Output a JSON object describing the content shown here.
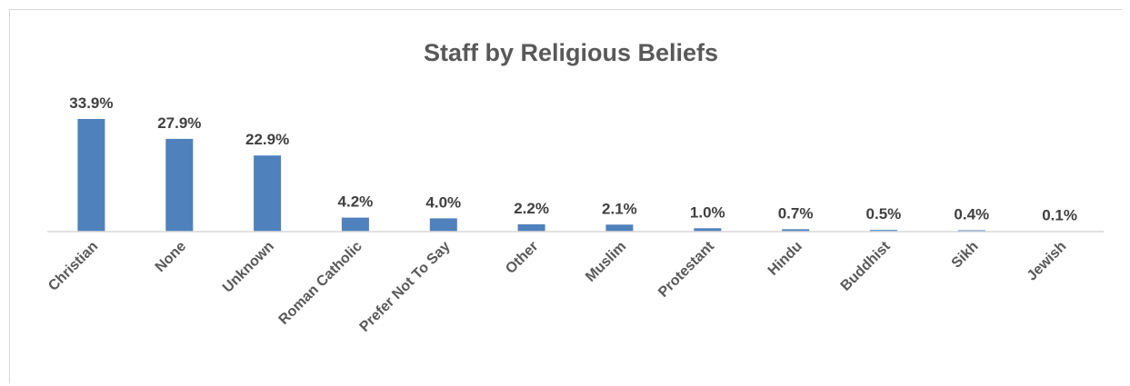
{
  "chart_data": {
    "type": "bar",
    "title": "Staff by Religious Beliefs",
    "xlabel": "",
    "ylabel": "",
    "categories": [
      "Christian",
      "None",
      "Unknown",
      "Roman Catholic",
      "Prefer Not To Say",
      "Other",
      "Muslim",
      "Protestant",
      "Hindu",
      "Buddhist",
      "Sikh",
      "Jewish"
    ],
    "values": [
      33.9,
      27.9,
      22.9,
      4.2,
      4.0,
      2.2,
      2.1,
      1.0,
      0.7,
      0.5,
      0.4,
      0.1
    ],
    "data_labels": [
      "33.9%",
      "27.9%",
      "22.9%",
      "4.2%",
      "4.0%",
      "2.2%",
      "2.1%",
      "1.0%",
      "0.7%",
      "0.5%",
      "0.4%",
      "0.1%"
    ],
    "unit": "%",
    "ylim": [
      0,
      40
    ],
    "grid": false,
    "legend": "none",
    "bar_color": "#4f81bd",
    "axis_color": "#d9d9d9"
  }
}
